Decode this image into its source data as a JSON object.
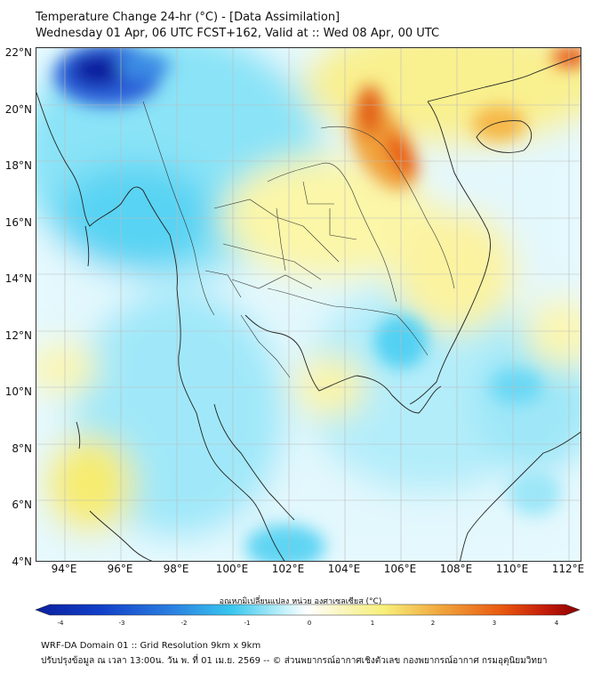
{
  "header": {
    "title_line1": "Temperature Change 24-hr (°C) - [Data Assimilation]",
    "title_line2": "Wednesday 01 Apr, 06 UTC FCST+162, Valid at :: Wed 08 Apr, 00 UTC"
  },
  "map": {
    "lat_labels": [
      "22°N",
      "20°N",
      "18°N",
      "16°N",
      "14°N",
      "12°N",
      "10°N",
      "8°N",
      "6°N",
      "4°N"
    ],
    "lon_labels": [
      "94°E",
      "96°E",
      "98°E",
      "100°E",
      "102°E",
      "104°E",
      "106°E",
      "108°E",
      "110°E",
      "112°E"
    ],
    "lat_range": [
      4,
      22.2
    ],
    "lon_range": [
      93.1,
      112.5
    ],
    "colors": {
      "cold_max": "#0b1f9e",
      "cold": "#38c7ef",
      "neutral": "#ffffff",
      "warm": "#f7f07a",
      "hot": "#e8560f",
      "hot_max": "#a10000",
      "borders": "#222222",
      "grid": "#bbbbbb"
    }
  },
  "colorbar": {
    "label": "อุณหภูมิเปลี่ยนแปลง หน่วย องศาเซลเซียส (°C)",
    "ticks": [
      "-4",
      "-3",
      "-2",
      "-1",
      "0",
      "1",
      "2",
      "3",
      "4"
    ],
    "min": -4,
    "max": 4
  },
  "footer": {
    "line1": "WRF-DA Domain 01 :: Grid Resolution 9km x 9km",
    "line2": "ปรับปรุงข้อมูล ณ เวลา 13:00น. วัน พ. ที่ 01 เม.ย. 2569 -- © ส่วนพยากรณ์อากาศเชิงตัวเลข กองพยากรณ์อากาศ กรมอุตุนิยมวิทยา"
  }
}
